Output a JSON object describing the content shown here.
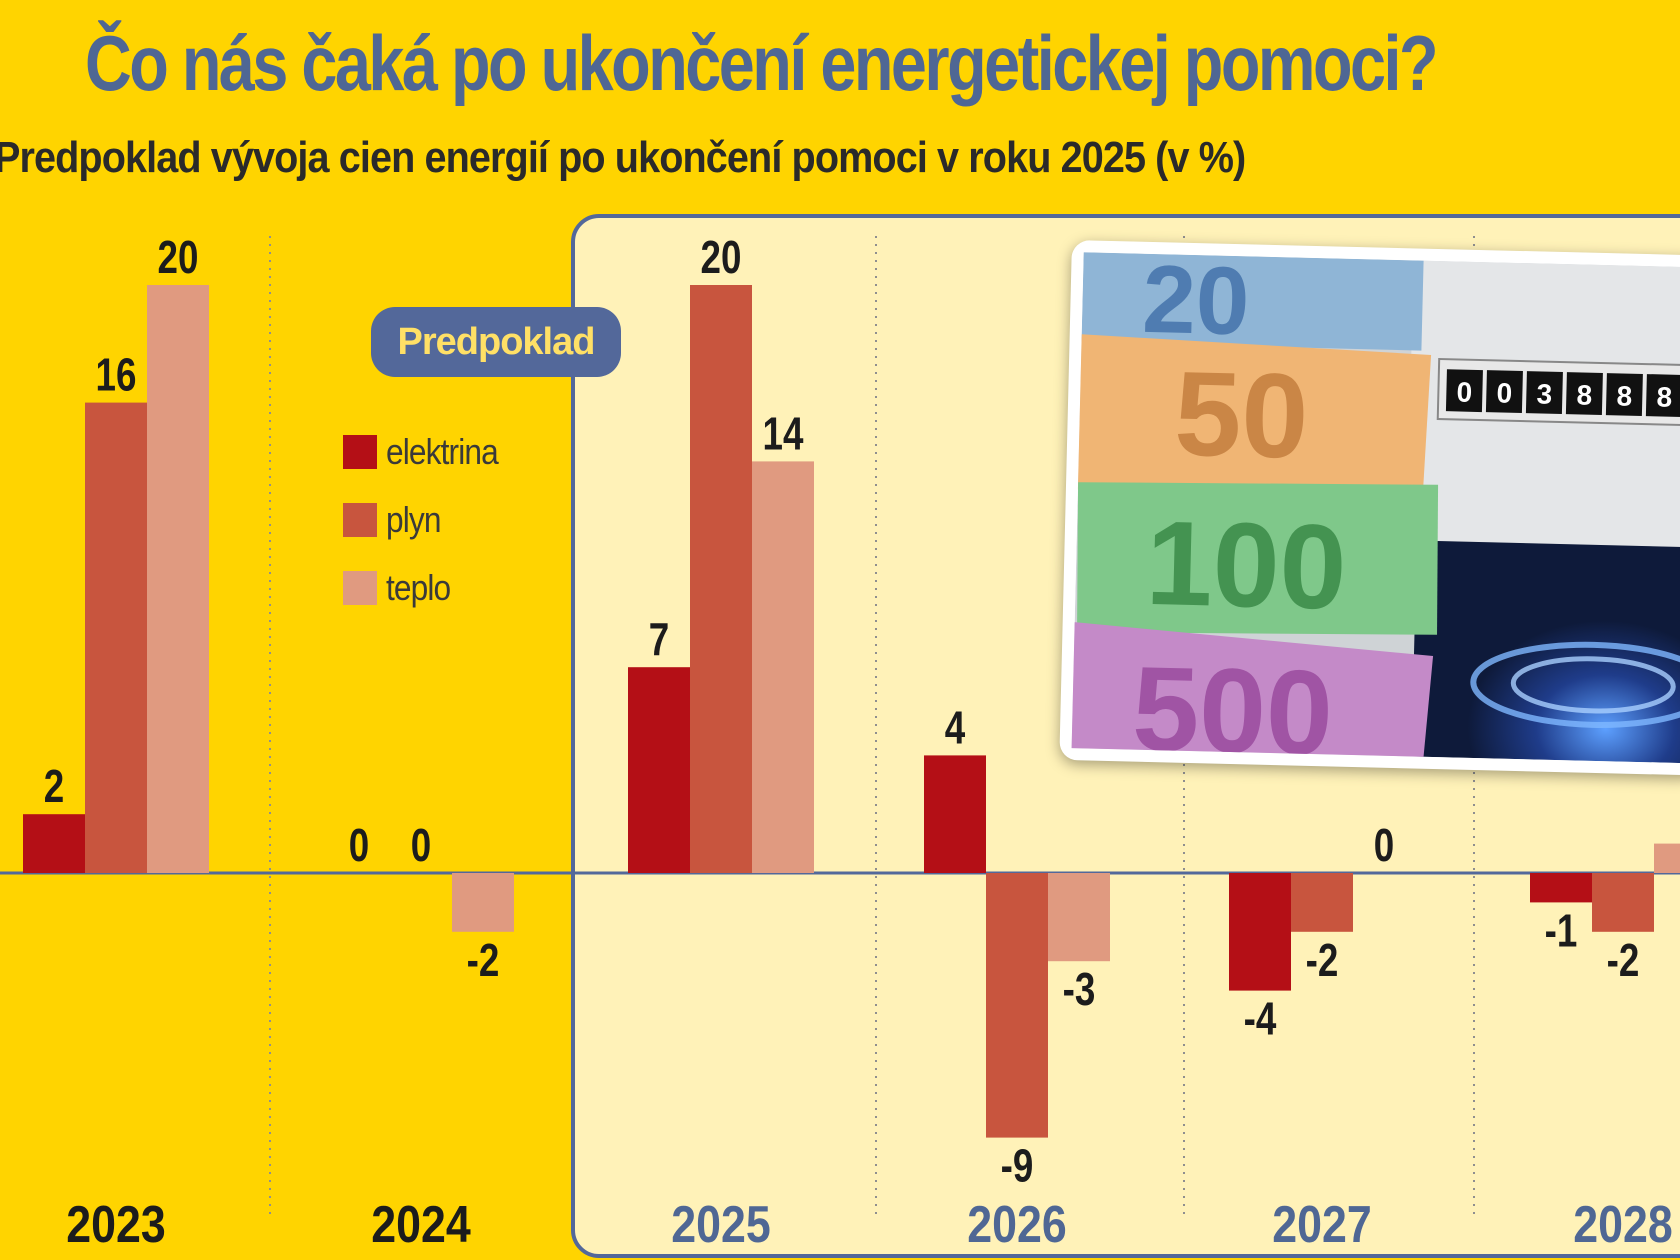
{
  "title": "Čo nás čaká po ukončení energetickej pomoci?",
  "subtitle": "Predpoklad vývoja cien energií po ukončení pomoci v roku 2025 (v %)",
  "forecast_badge": "Predpoklad",
  "colors": {
    "background": "#FFD400",
    "forecast_panel": "#FFF2B8",
    "elektrina": "#B40F16",
    "plyn": "#C8553E",
    "teplo": "#E09A80",
    "title": "#4F6794",
    "forecast_year": "#4F6794",
    "axis": "#53689A"
  },
  "legend": [
    {
      "label": "elektrina",
      "color": "#B40F16"
    },
    {
      "label": "plyn",
      "color": "#C8553E"
    },
    {
      "label": "teplo",
      "color": "#E09A80"
    }
  ],
  "photo": {
    "icon": "euro-banknotes-meter-gas-flame-photo",
    "banknotes": [
      "20",
      "50",
      "100",
      "500"
    ],
    "meter_reading": "003888"
  },
  "chart_data": {
    "type": "bar",
    "categories": [
      "2023",
      "2024",
      "2025",
      "2026",
      "2027",
      "2028"
    ],
    "forecast_from": "2025",
    "series": [
      {
        "name": "elektrina",
        "values": [
          2,
          0,
          7,
          4,
          -4,
          -1
        ]
      },
      {
        "name": "plyn",
        "values": [
          16,
          0,
          20,
          -9,
          -2,
          -2
        ]
      },
      {
        "name": "teplo",
        "values": [
          20,
          -2,
          14,
          -3,
          0,
          1
        ]
      }
    ],
    "data_labels": [
      [
        "2",
        "0",
        "7",
        "4",
        "-4",
        "-1"
      ],
      [
        "16",
        "0",
        "20",
        "-9",
        "-2",
        "-2"
      ],
      [
        "20",
        "-2",
        "14",
        "-3",
        "0",
        ""
      ]
    ],
    "ylim": [
      -12,
      21
    ],
    "grid": false
  }
}
